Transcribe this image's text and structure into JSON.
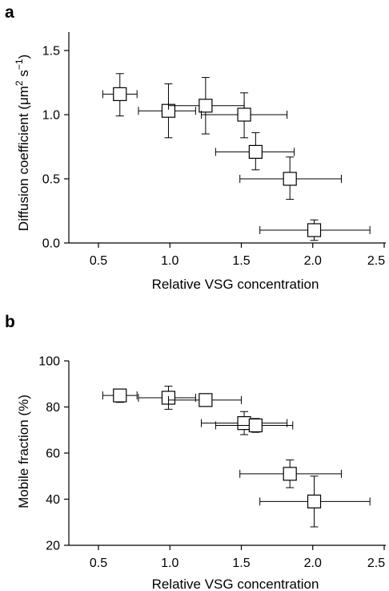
{
  "chart_data": [
    {
      "type": "scatter",
      "panel_label": "a",
      "title": "",
      "xlabel": "Relative VSG concentration",
      "ylabel_main": "Diffusion coefficient (μm",
      "ylabel_sup1": "2",
      "ylabel_mid": " s",
      "ylabel_sup2": "−1",
      "ylabel_end": ")",
      "xlim": [
        0.3,
        2.5
      ],
      "ylim": [
        0.0,
        1.55
      ],
      "xticks": [
        0.5,
        1.0,
        1.5,
        2.0,
        2.5
      ],
      "xticklabels": [
        "0.5",
        "1.0",
        "1.5",
        "2.0",
        "2.5"
      ],
      "yticks": [
        0.0,
        0.5,
        1.0,
        1.5
      ],
      "yticklabels": [
        "0.0",
        "0.5",
        "1.0",
        "1.5"
      ],
      "grid": false,
      "marker": "open-square",
      "points": [
        {
          "x": 0.65,
          "y": 1.16,
          "x_lo": 0.53,
          "x_hi": 0.77,
          "y_lo": 0.99,
          "y_hi": 1.32
        },
        {
          "x": 0.99,
          "y": 1.03,
          "x_lo": 0.78,
          "x_hi": 1.18,
          "y_lo": 0.82,
          "y_hi": 1.24
        },
        {
          "x": 1.25,
          "y": 1.07,
          "x_lo": 0.99,
          "x_hi": 1.52,
          "y_lo": 0.85,
          "y_hi": 1.29
        },
        {
          "x": 1.52,
          "y": 1.0,
          "x_lo": 1.22,
          "x_hi": 1.82,
          "y_lo": 0.82,
          "y_hi": 1.17
        },
        {
          "x": 1.6,
          "y": 0.71,
          "x_lo": 1.32,
          "x_hi": 1.87,
          "y_lo": 0.57,
          "y_hi": 0.86
        },
        {
          "x": 1.84,
          "y": 0.5,
          "x_lo": 1.49,
          "x_hi": 2.2,
          "y_lo": 0.34,
          "y_hi": 0.67
        },
        {
          "x": 2.01,
          "y": 0.1,
          "x_lo": 1.63,
          "x_hi": 2.4,
          "y_lo": 0.02,
          "y_hi": 0.18
        }
      ]
    },
    {
      "type": "scatter",
      "panel_label": "b",
      "title": "",
      "xlabel": "Relative VSG concentration",
      "ylabel": "Mobile fraction (%)",
      "xlim": [
        0.3,
        2.5
      ],
      "ylim": [
        20,
        100
      ],
      "xticks": [
        0.5,
        1.0,
        1.5,
        2.0,
        2.5
      ],
      "xticklabels": [
        "0.5",
        "1.0",
        "1.5",
        "2.0",
        "2.5"
      ],
      "yticks": [
        20,
        40,
        60,
        80,
        100
      ],
      "yticklabels": [
        "20",
        "40",
        "60",
        "80",
        "100"
      ],
      "grid": false,
      "marker": "open-square",
      "points": [
        {
          "x": 0.65,
          "y": 85,
          "x_lo": 0.53,
          "x_hi": 0.77,
          "y_lo": 82,
          "y_hi": 87
        },
        {
          "x": 0.99,
          "y": 84,
          "x_lo": 0.78,
          "x_hi": 1.18,
          "y_lo": 79,
          "y_hi": 89
        },
        {
          "x": 1.25,
          "y": 83,
          "x_lo": 0.99,
          "x_hi": 1.5,
          "y_lo": 81,
          "y_hi": 85
        },
        {
          "x": 1.52,
          "y": 73,
          "x_lo": 1.22,
          "x_hi": 1.82,
          "y_lo": 68,
          "y_hi": 78
        },
        {
          "x": 1.6,
          "y": 72,
          "x_lo": 1.32,
          "x_hi": 1.86,
          "y_lo": 69,
          "y_hi": 75
        },
        {
          "x": 1.84,
          "y": 51,
          "x_lo": 1.49,
          "x_hi": 2.2,
          "y_lo": 45,
          "y_hi": 57
        },
        {
          "x": 2.01,
          "y": 39,
          "x_lo": 1.63,
          "x_hi": 2.4,
          "y_lo": 28,
          "y_hi": 50
        }
      ]
    }
  ]
}
